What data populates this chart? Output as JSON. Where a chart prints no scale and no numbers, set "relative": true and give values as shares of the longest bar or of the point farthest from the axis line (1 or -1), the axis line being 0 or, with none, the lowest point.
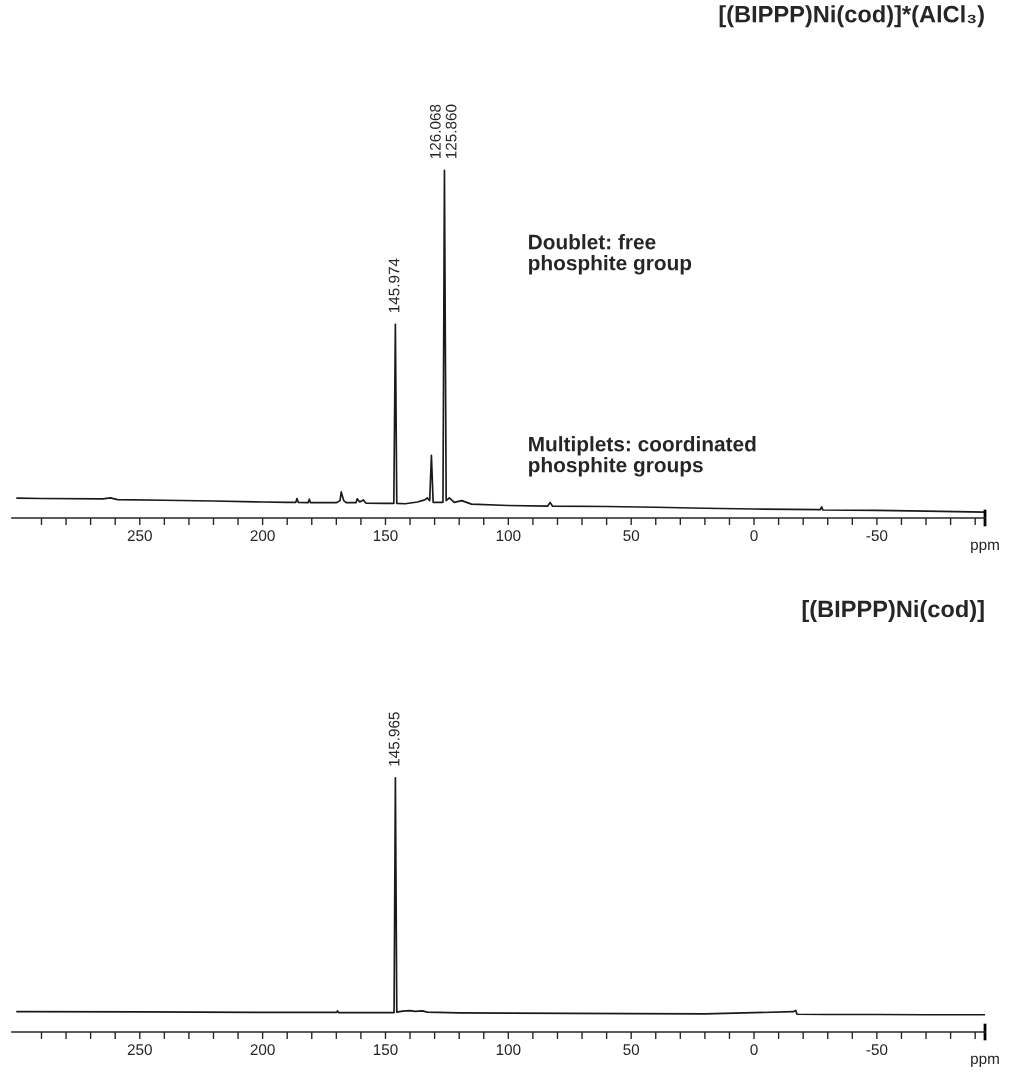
{
  "chart_data": [
    {
      "type": "line",
      "title": "[(BIPPP)Ni(cod)]*(AlCl₃)",
      "xlabel": "ppm",
      "relative": true,
      "tick_labels": "x",
      "xlim": [
        302,
        -94
      ],
      "xticks": [
        {
          "value": 290,
          "label": null
        },
        {
          "value": 280,
          "label": null
        },
        {
          "value": 270,
          "label": null
        },
        {
          "value": 260,
          "label": null
        },
        250,
        {
          "value": 240,
          "label": null
        },
        {
          "value": 230,
          "label": null
        },
        {
          "value": 220,
          "label": null
        },
        {
          "value": 210,
          "label": null
        },
        200,
        {
          "value": 190,
          "label": null
        },
        {
          "value": 180,
          "label": null
        },
        {
          "value": 170,
          "label": null
        },
        {
          "value": 160,
          "label": null
        },
        150,
        {
          "value": 140,
          "label": null
        },
        {
          "value": 130,
          "label": null
        },
        {
          "value": 120,
          "label": null
        },
        {
          "value": 110,
          "label": null
        },
        100,
        {
          "value": 90,
          "label": null
        },
        {
          "value": 80,
          "label": null
        },
        {
          "value": 70,
          "label": null
        },
        {
          "value": 60,
          "label": null
        },
        50,
        {
          "value": 40,
          "label": null
        },
        {
          "value": 30,
          "label": null
        },
        {
          "value": 20,
          "label": null
        },
        {
          "value": 10,
          "label": null
        },
        0,
        {
          "value": -10,
          "label": null
        },
        {
          "value": -20,
          "label": null
        },
        {
          "value": -30,
          "label": null
        },
        {
          "value": -40,
          "label": null
        },
        -50,
        {
          "value": -60,
          "label": null
        },
        {
          "value": -70,
          "label": null
        },
        {
          "value": -80,
          "label": null
        },
        {
          "value": -90,
          "label": null
        }
      ],
      "series": [
        {
          "color": "#1a1a1a",
          "x": [
            300,
            290,
            265,
            262,
            259,
            240,
            220,
            200,
            190,
            186.5,
            186,
            185.5,
            181.5,
            181,
            180.5,
            170,
            168.5,
            168,
            167,
            166,
            162,
            161.5,
            160.5,
            159,
            158,
            150,
            146.6,
            145.974,
            145.4,
            142,
            137,
            134,
            133,
            132,
            131.3,
            130.6,
            128,
            126.6,
            126.0,
            125.3,
            124,
            122,
            119,
            115,
            100,
            84,
            83,
            82,
            60,
            40,
            20,
            0,
            -27,
            -27.5,
            -28,
            -50,
            -70,
            -94
          ],
          "values": [
            0.057,
            0.056,
            0.055,
            0.058,
            0.053,
            0.051,
            0.049,
            0.046,
            0.045,
            0.045,
            0.056,
            0.045,
            0.044,
            0.054,
            0.044,
            0.044,
            0.05,
            0.075,
            0.05,
            0.044,
            0.044,
            0.055,
            0.046,
            0.052,
            0.043,
            0.042,
            0.042,
            0.557,
            0.042,
            0.041,
            0.046,
            0.052,
            0.058,
            0.05,
            0.18,
            0.045,
            0.045,
            0.045,
            1.0,
            0.05,
            0.058,
            0.045,
            0.05,
            0.04,
            0.036,
            0.034,
            0.045,
            0.034,
            0.033,
            0.031,
            0.028,
            0.026,
            0.024,
            0.032,
            0.023,
            0.022,
            0.02,
            0.017
          ]
        }
      ],
      "annotations": [
        {
          "text": "126.068",
          "x": 126.068,
          "y": 1.0
        },
        {
          "text": "125.860",
          "x": 125.86,
          "y": 1.0
        },
        {
          "text": "145.974",
          "x": 145.974,
          "y": 0.557
        },
        "Doublet: free\nphosphite group",
        "Multiplets: coordinated\nphosphite groups"
      ]
    },
    {
      "type": "line",
      "title": "[(BIPPP)Ni(cod)]",
      "xlabel": "ppm",
      "relative": true,
      "tick_labels": "x",
      "xlim": [
        302,
        -94
      ],
      "xticks": [
        {
          "value": 290,
          "label": null
        },
        {
          "value": 280,
          "label": null
        },
        {
          "value": 270,
          "label": null
        },
        {
          "value": 260,
          "label": null
        },
        250,
        {
          "value": 240,
          "label": null
        },
        {
          "value": 230,
          "label": null
        },
        {
          "value": 220,
          "label": null
        },
        {
          "value": 210,
          "label": null
        },
        200,
        {
          "value": 190,
          "label": null
        },
        {
          "value": 180,
          "label": null
        },
        {
          "value": 170,
          "label": null
        },
        {
          "value": 160,
          "label": null
        },
        150,
        {
          "value": 140,
          "label": null
        },
        {
          "value": 130,
          "label": null
        },
        {
          "value": 120,
          "label": null
        },
        {
          "value": 110,
          "label": null
        },
        100,
        {
          "value": 90,
          "label": null
        },
        {
          "value": 80,
          "label": null
        },
        {
          "value": 70,
          "label": null
        },
        {
          "value": 60,
          "label": null
        },
        50,
        {
          "value": 40,
          "label": null
        },
        {
          "value": 30,
          "label": null
        },
        {
          "value": 20,
          "label": null
        },
        {
          "value": 10,
          "label": null
        },
        0,
        {
          "value": -10,
          "label": null
        },
        {
          "value": -20,
          "label": null
        },
        {
          "value": -30,
          "label": null
        },
        {
          "value": -40,
          "label": null
        },
        -50,
        {
          "value": -60,
          "label": null
        },
        {
          "value": -70,
          "label": null
        },
        {
          "value": -80,
          "label": null
        },
        {
          "value": -90,
          "label": null
        }
      ],
      "series": [
        {
          "color": "#1a1a1a",
          "x": [
            300,
            250,
            200,
            170,
            169.5,
            169,
            150,
            146.5,
            145.965,
            145.4,
            143,
            140,
            138,
            135,
            133,
            120,
            100,
            50,
            20,
            -16,
            -17,
            -17.5,
            -30,
            -50,
            -70,
            -94
          ],
          "values": [
            0.08,
            0.079,
            0.077,
            0.077,
            0.083,
            0.076,
            0.076,
            0.076,
            1.0,
            0.078,
            0.082,
            0.084,
            0.081,
            0.083,
            0.078,
            0.075,
            0.074,
            0.072,
            0.071,
            0.08,
            0.085,
            0.07,
            0.069,
            0.069,
            0.068,
            0.068
          ]
        }
      ],
      "annotations": [
        {
          "text": "145.965",
          "x": 145.965,
          "y": 1.0
        }
      ]
    }
  ]
}
